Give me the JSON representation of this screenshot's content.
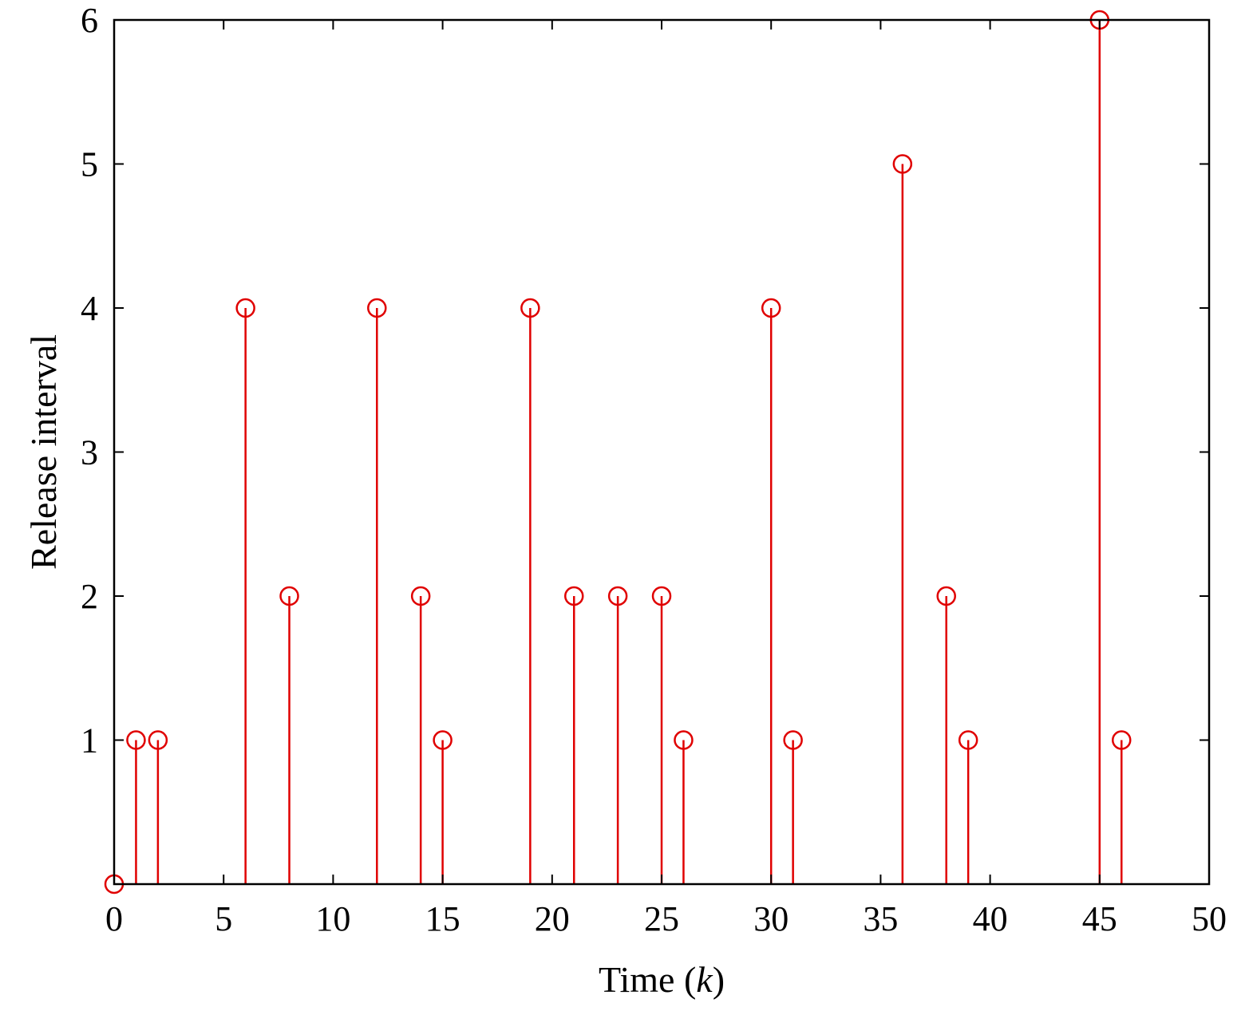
{
  "chart_data": {
    "type": "stem",
    "title": "",
    "xlabel": "Time (k)",
    "xlabel_parts": {
      "prefix": "Time (",
      "variable": "k",
      "suffix": ")"
    },
    "ylabel": "Release interval",
    "xlim": [
      0,
      50
    ],
    "ylim": [
      0,
      6
    ],
    "xticks": [
      0,
      5,
      10,
      15,
      20,
      25,
      30,
      35,
      40,
      45,
      50
    ],
    "yticks": [
      1,
      2,
      3,
      4,
      5,
      6
    ],
    "grid": false,
    "legend": "none",
    "marker": "circle",
    "color": "#e00000",
    "axis_color": "#000000",
    "series": [
      {
        "x": [
          0,
          1,
          2,
          6,
          8,
          12,
          14,
          15,
          19,
          21,
          23,
          25,
          26,
          30,
          31,
          36,
          38,
          39,
          45,
          46
        ],
        "y": [
          0,
          1,
          1,
          4,
          2,
          4,
          2,
          1,
          4,
          2,
          2,
          2,
          1,
          4,
          1,
          5,
          2,
          1,
          6,
          1
        ]
      }
    ]
  }
}
